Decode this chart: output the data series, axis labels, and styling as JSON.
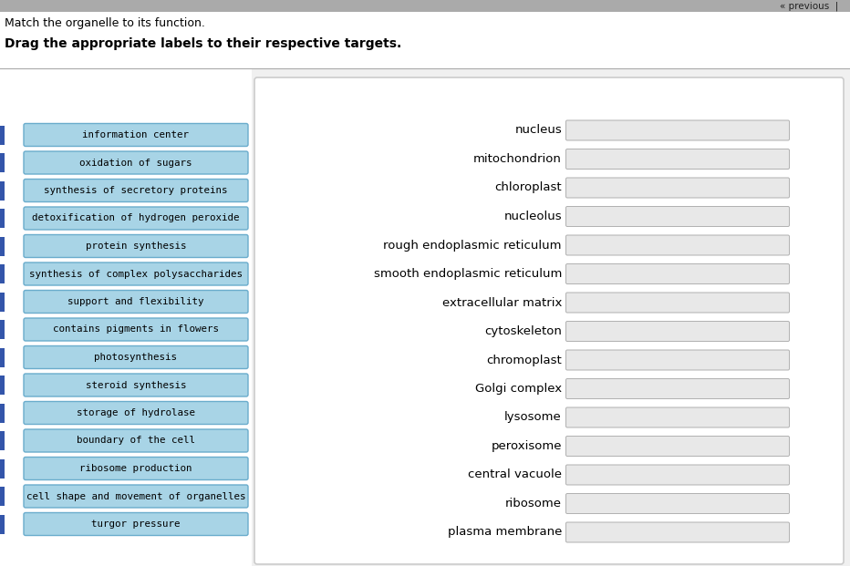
{
  "title_line1": "Match the organelle to its function.",
  "title_line2": "Drag the appropriate labels to their respective targets.",
  "bg_top": "#c8c8c8",
  "bg_white": "#ffffff",
  "bg_main": "#f0f0f0",
  "bg_right_panel": "#ffffff",
  "button_face": "#a8d4e6",
  "button_edge": "#6aaccc",
  "button_text": "#000000",
  "input_face": "#e8e8e8",
  "input_edge": "#b0b0b0",
  "left_strip_color": "#3355aa",
  "previous_text": "« previous  |",
  "left_labels": [
    "information center",
    "oxidation of sugars",
    "synthesis of secretory proteins",
    "detoxification of hydrogen peroxide",
    "protein synthesis",
    "synthesis of complex polysaccharides",
    "support and flexibility",
    "contains pigments in flowers",
    "photosynthesis",
    "steroid synthesis",
    "storage of hydrolase",
    "boundary of the cell",
    "ribosome production",
    "cell shape and movement of organelles",
    "turgor pressure"
  ],
  "right_labels": [
    "nucleus",
    "mitochondrion",
    "chloroplast",
    "nucleolus",
    "rough endoplasmic reticulum",
    "smooth endoplasmic reticulum",
    "extracellular matrix",
    "cytoskeleton",
    "chromoplast",
    "Golgi complex",
    "lysosome",
    "peroxisome",
    "central vacuole",
    "ribosome",
    "plasma membrane"
  ],
  "fig_w": 9.32,
  "fig_h": 6.21,
  "dpi": 100
}
